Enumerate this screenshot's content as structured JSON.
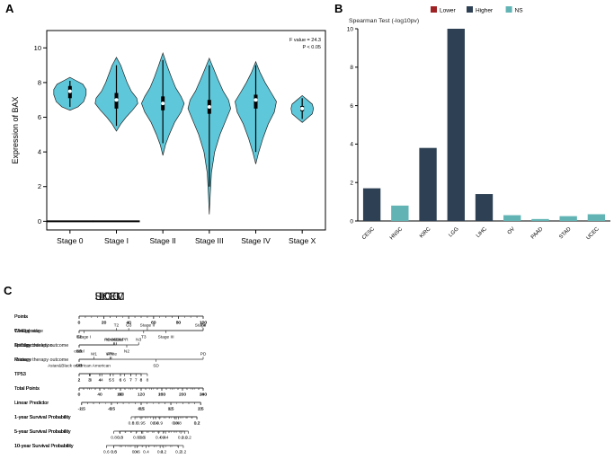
{
  "figure": {
    "panels": [
      "A",
      "B",
      "C"
    ]
  },
  "chart_data": [
    {
      "id": "violin-expression",
      "type": "violin",
      "title": "",
      "xlabel": "",
      "ylabel": "Expression of BAX",
      "ylim": [
        0,
        10
      ],
      "yticks": [
        0,
        2,
        4,
        6,
        8,
        10
      ],
      "categories": [
        "Stage 0",
        "Stage I",
        "Stage II",
        "Stage III",
        "Stage IV",
        "Stage X"
      ],
      "annotation": [
        "F value = 24.3",
        "P < 0.05"
      ],
      "fill": "#5ec8da",
      "violins": [
        {
          "category": "Stage 0",
          "median": 7.5,
          "q1": 7.1,
          "q3": 7.8,
          "whisker_low": 6.6,
          "whisker_high": 8.1,
          "width_scale": 0.72,
          "zero_line": true,
          "profile": [
            [
              6.4,
              0
            ],
            [
              6.6,
              0.5
            ],
            [
              6.9,
              0.85
            ],
            [
              7.3,
              1.0
            ],
            [
              7.6,
              1.0
            ],
            [
              7.9,
              0.8
            ],
            [
              8.15,
              0.3
            ],
            [
              8.3,
              0
            ]
          ]
        },
        {
          "category": "Stage I",
          "median": 7.0,
          "q1": 6.5,
          "q3": 7.4,
          "whisker_low": 5.5,
          "whisker_high": 9.0,
          "width_scale": 0.95,
          "zero_line": true,
          "profile": [
            [
              5.2,
              0
            ],
            [
              5.6,
              0.2
            ],
            [
              6.0,
              0.45
            ],
            [
              6.4,
              0.75
            ],
            [
              6.8,
              1.0
            ],
            [
              7.1,
              0.95
            ],
            [
              7.5,
              0.7
            ],
            [
              8.0,
              0.5
            ],
            [
              8.5,
              0.35
            ],
            [
              9.0,
              0.2
            ],
            [
              9.45,
              0
            ]
          ]
        },
        {
          "category": "Stage II",
          "median": 6.8,
          "q1": 6.4,
          "q3": 7.2,
          "whisker_low": 4.5,
          "whisker_high": 9.3,
          "width_scale": 0.95,
          "zero_line": false,
          "profile": [
            [
              3.8,
              0
            ],
            [
              4.4,
              0.12
            ],
            [
              5.0,
              0.3
            ],
            [
              5.7,
              0.55
            ],
            [
              6.3,
              0.85
            ],
            [
              6.8,
              1.0
            ],
            [
              7.2,
              0.85
            ],
            [
              7.7,
              0.6
            ],
            [
              8.3,
              0.4
            ],
            [
              8.9,
              0.22
            ],
            [
              9.7,
              0
            ]
          ]
        },
        {
          "category": "Stage III",
          "median": 6.6,
          "q1": 6.2,
          "q3": 7.0,
          "whisker_low": 2.0,
          "whisker_high": 9.0,
          "width_scale": 0.95,
          "zero_line": false,
          "profile": [
            [
              0.4,
              0
            ],
            [
              1.5,
              0.04
            ],
            [
              2.8,
              0.1
            ],
            [
              4.0,
              0.25
            ],
            [
              5.0,
              0.5
            ],
            [
              5.9,
              0.8
            ],
            [
              6.5,
              1.0
            ],
            [
              7.0,
              0.9
            ],
            [
              7.5,
              0.65
            ],
            [
              8.2,
              0.4
            ],
            [
              8.8,
              0.2
            ],
            [
              9.4,
              0
            ]
          ]
        },
        {
          "category": "Stage IV",
          "median": 7.0,
          "q1": 6.5,
          "q3": 7.3,
          "whisker_low": 4.0,
          "whisker_high": 9.0,
          "width_scale": 0.92,
          "zero_line": false,
          "profile": [
            [
              3.3,
              0
            ],
            [
              4.0,
              0.15
            ],
            [
              4.8,
              0.35
            ],
            [
              5.6,
              0.6
            ],
            [
              6.3,
              0.9
            ],
            [
              6.9,
              1.0
            ],
            [
              7.4,
              0.75
            ],
            [
              8.0,
              0.45
            ],
            [
              8.6,
              0.2
            ],
            [
              9.2,
              0
            ]
          ]
        },
        {
          "category": "Stage X",
          "median": 6.5,
          "q1": 6.35,
          "q3": 6.65,
          "whisker_low": 5.9,
          "whisker_high": 7.1,
          "width_scale": 0.5,
          "zero_line": false,
          "profile": [
            [
              5.7,
              0
            ],
            [
              5.95,
              0.45
            ],
            [
              6.2,
              0.9
            ],
            [
              6.5,
              1.0
            ],
            [
              6.75,
              0.9
            ],
            [
              7.0,
              0.45
            ],
            [
              7.25,
              0
            ]
          ]
        }
      ]
    },
    {
      "id": "spearman-bars",
      "type": "bar",
      "title": "Spearman Test (-log10pv)",
      "xlabel": "",
      "ylabel": "",
      "ylim": [
        0,
        10
      ],
      "yticks": [
        0,
        2,
        4,
        6,
        8,
        10
      ],
      "categories": [
        "CESC",
        "HNSC",
        "KIRC",
        "LGG",
        "LIHC",
        "OV",
        "PAAD",
        "STAD",
        "UCEC"
      ],
      "values": [
        1.7,
        0.8,
        3.8,
        10,
        1.4,
        0.3,
        0.1,
        0.25,
        0.35
      ],
      "series_class": [
        "Higher",
        "NS",
        "Higher",
        "Higher",
        "Higher",
        "NS",
        "NS",
        "NS",
        "NS"
      ],
      "legend": [
        {
          "label": "Lower",
          "color": "#9e2123"
        },
        {
          "label": "Higher",
          "color": "#2e4154"
        },
        {
          "label": "NS",
          "color": "#62b4b4"
        }
      ],
      "legend_position": "top"
    },
    {
      "id": "nomograms",
      "type": "nomogram",
      "charts": [
        {
          "title": "SKCM",
          "rows": [
            {
              "label": "Points",
              "x0": 0,
              "x1": 1,
              "even": [
                "0",
                "20",
                "40",
                "60",
                "80",
                "100"
              ],
              "minor": 3
            },
            {
              "label": "T stage",
              "x0": 0,
              "x1": 1,
              "marks": [
                {
                  "p": 0,
                  "t": "T1"
                },
                {
                  "p": 0.3,
                  "t": "T2",
                  "side": "a"
                },
                {
                  "p": 0.52,
                  "t": "T3"
                },
                {
                  "p": 1,
                  "t": "T4",
                  "side": "a"
                }
              ]
            },
            {
              "label": "N stage",
              "x0": 0,
              "x1": 0.48,
              "marks": [
                {
                  "p": 0,
                  "t": "N0"
                },
                {
                  "p": 0.6,
                  "t": "N1",
                  "side": "a"
                },
                {
                  "p": 0.8,
                  "t": "N2"
                },
                {
                  "p": 1,
                  "t": "N3",
                  "side": "a"
                }
              ]
            },
            {
              "label": "M stage",
              "x0": 0,
              "x1": 0.12,
              "marks": [
                {
                  "p": 0,
                  "t": "M0"
                },
                {
                  "p": 1,
                  "t": "M1",
                  "side": "a"
                }
              ]
            },
            {
              "label": "TP53",
              "x0": 0,
              "x1": 0.55,
              "even": [
                "2",
                "3",
                "4",
                "5",
                "6",
                "7",
                "8"
              ]
            },
            {
              "label": "Total Points",
              "x0": 0,
              "x1": 1,
              "even": [
                "0",
                "100",
                "200",
                "300"
              ],
              "minor": 9
            },
            {
              "label": "Linear Predictor",
              "x0": 0.02,
              "x1": 0.98,
              "even": [
                "-1.5",
                "-0.5",
                "0.5",
                "1.5",
                "2.5"
              ],
              "minor": 4
            },
            {
              "label": "1-year Survival Probability",
              "x0": 0.42,
              "x1": 0.95,
              "even": [
                "0.8",
                "0.6",
                "0.4",
                "0.2"
              ],
              "minor": 3
            },
            {
              "label": "5-year Survival Probability",
              "x0": 0.28,
              "x1": 0.82,
              "even": [
                "0.8",
                "0.6",
                "0.4",
                "0.2"
              ],
              "minor": 3
            },
            {
              "label": "10-year Survival Probability",
              "x0": 0.22,
              "x1": 0.68,
              "even": [
                "0.6",
                "0.4",
                "0.2"
              ],
              "minor": 3
            }
          ]
        },
        {
          "title": "LGG",
          "rows": [
            {
              "label": "Points",
              "x0": 0,
              "x1": 1,
              "even": [
                "0",
                "20",
                "40",
                "60",
                "80",
                "100"
              ],
              "minor": 3
            },
            {
              "label": "WHO grade",
              "x0": 0,
              "x1": 0.4,
              "marks": [
                {
                  "p": 0,
                  "t": "G2"
                },
                {
                  "p": 1,
                  "t": "G3",
                  "side": "a"
                }
              ]
            },
            {
              "label": "1p/19q codeletion",
              "x0": 0,
              "x1": 0.28,
              "marks": [
                {
                  "p": 0,
                  "t": "codel"
                },
                {
                  "p": 1,
                  "t": "non-codel",
                  "side": "a"
                }
              ]
            },
            {
              "label": "Primary therapy outcome",
              "x0": 0,
              "x1": 1,
              "marks": [
                {
                  "p": 0,
                  "t": "CR"
                },
                {
                  "p": 0.25,
                  "t": "PR",
                  "side": "a"
                },
                {
                  "p": 0.62,
                  "t": "SD"
                },
                {
                  "p": 1,
                  "t": "PD",
                  "side": "a"
                }
              ]
            },
            {
              "label": "TP53",
              "x0": 0,
              "x1": 0.5,
              "even": [
                "2",
                "3",
                "4",
                "5",
                "6",
                "7",
                "8"
              ]
            },
            {
              "label": "Total Points",
              "x0": 0,
              "x1": 1,
              "even": [
                "0",
                "40",
                "80",
                "120",
                "160",
                "200",
                "240"
              ],
              "minor": 3
            },
            {
              "label": "Linear Predictor",
              "x0": 0.02,
              "x1": 0.98,
              "even": [
                "-2.5",
                "-1.5",
                "-0.5",
                "0.5",
                "1.5"
              ],
              "minor": 4
            },
            {
              "label": "1-year Survival Probability",
              "x0": 0.5,
              "x1": 0.95,
              "even": [
                "0.95",
                "0.9",
                "0.8",
                "0.7"
              ],
              "minor": 3
            },
            {
              "label": "5-year Survival Probability",
              "x0": 0.33,
              "x1": 0.88,
              "even": [
                "0.8",
                "0.6",
                "0.4",
                "0.2"
              ],
              "minor": 3
            },
            {
              "label": "10-year Survival Probability",
              "x0": 0.28,
              "x1": 0.84,
              "even": [
                "0.8",
                "0.6",
                "0.4",
                "0.2"
              ],
              "minor": 3
            }
          ]
        },
        {
          "title": "UCEC",
          "rows": [
            {
              "label": "Points",
              "x0": 0,
              "x1": 1,
              "even": [
                "0",
                "20",
                "40",
                "60",
                "80",
                "100"
              ],
              "minor": 3
            },
            {
              "label": "Clinical stage",
              "x0": 0,
              "x1": 1,
              "marks": [
                {
                  "p": 0.04,
                  "t": "Stage I"
                },
                {
                  "p": 0.55,
                  "t": "Stage II",
                  "side": "a"
                },
                {
                  "p": 0.7,
                  "t": "Stage III"
                },
                {
                  "p": 1,
                  "t": "Stage IV",
                  "side": "a"
                }
              ]
            },
            {
              "label": "Primary therapy outcome",
              "x0": 0,
              "x1": 0.3,
              "marks": [
                {
                  "p": 0,
                  "t": "CR"
                },
                {
                  "p": 1,
                  "t": "PD&SD&PR",
                  "side": "a"
                }
              ]
            },
            {
              "label": "Race",
              "x0": 0,
              "x1": 0.26,
              "marks": [
                {
                  "p": 0,
                  "t": "Asian&Black or African American"
                },
                {
                  "p": 1,
                  "t": "White",
                  "side": "a"
                }
              ]
            },
            {
              "label": "TP53",
              "x0": 0,
              "x1": 0.5,
              "even": [
                "2",
                "3",
                "4",
                "5",
                "6",
                "7",
                "8"
              ]
            },
            {
              "label": "Total Points",
              "x0": 0,
              "x1": 1,
              "even": [
                "0",
                "40",
                "80",
                "120",
                "160",
                "200",
                "240"
              ],
              "minor": 3
            },
            {
              "label": "Linear Predictor",
              "x0": 0.02,
              "x1": 0.98,
              "even": [
                "-1",
                "0",
                "1",
                "2",
                "3"
              ],
              "minor": 4
            },
            {
              "label": "1-year Survival Probability",
              "x0": 0.45,
              "x1": 0.95,
              "even": [
                "0.8",
                "0.6",
                "0.4",
                "0.2"
              ],
              "minor": 3
            },
            {
              "label": "5-year Survival Probability",
              "x0": 0.33,
              "x1": 0.85,
              "even": [
                "0.8",
                "0.6",
                "0.4",
                "0.2"
              ],
              "minor": 3
            },
            {
              "label": "10-year Survival Probability",
              "x0": 0.28,
              "x1": 0.8,
              "even": [
                "0.6",
                "0.4",
                "0.2"
              ],
              "minor": 3
            }
          ]
        }
      ]
    }
  ]
}
